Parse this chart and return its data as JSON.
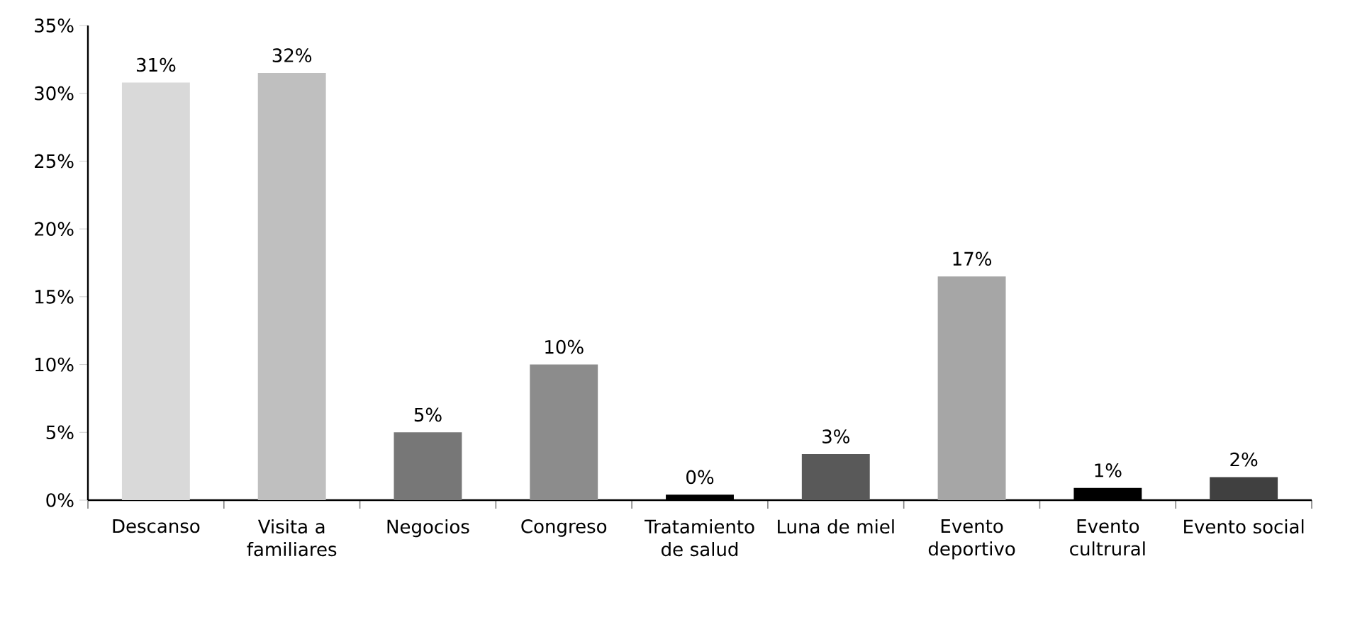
{
  "chart_data": {
    "type": "bar",
    "categories": [
      "Descanso",
      "Visita a familiares",
      "Negocios",
      "Congreso",
      "Tratamiento de salud",
      "Luna de miel",
      "Evento deportivo",
      "Evento cultrural",
      "Evento social"
    ],
    "values": [
      30.8,
      31.5,
      5.0,
      10.0,
      0.4,
      3.4,
      16.5,
      0.9,
      1.7
    ],
    "colors": [
      "#d9d9d9",
      "#bfbfbf",
      "#777777",
      "#8c8c8c",
      "#000000",
      "#595959",
      "#a6a6a6",
      "#000000",
      "#404040"
    ],
    "value_labels": [
      "31%",
      "32%",
      "5%",
      "10%",
      "0%",
      "3%",
      "17%",
      "1%",
      "2%"
    ],
    "ylim": [
      0,
      35
    ],
    "yticks": [
      {
        "value": 0,
        "label": "0%"
      },
      {
        "value": 5,
        "label": "5%"
      },
      {
        "value": 10,
        "label": "10%"
      },
      {
        "value": 15,
        "label": "15%"
      },
      {
        "value": 20,
        "label": "20%"
      },
      {
        "value": 25,
        "label": "25%"
      },
      {
        "value": 30,
        "label": "30%"
      },
      {
        "value": 35,
        "label": "35%"
      }
    ],
    "grid": false
  }
}
